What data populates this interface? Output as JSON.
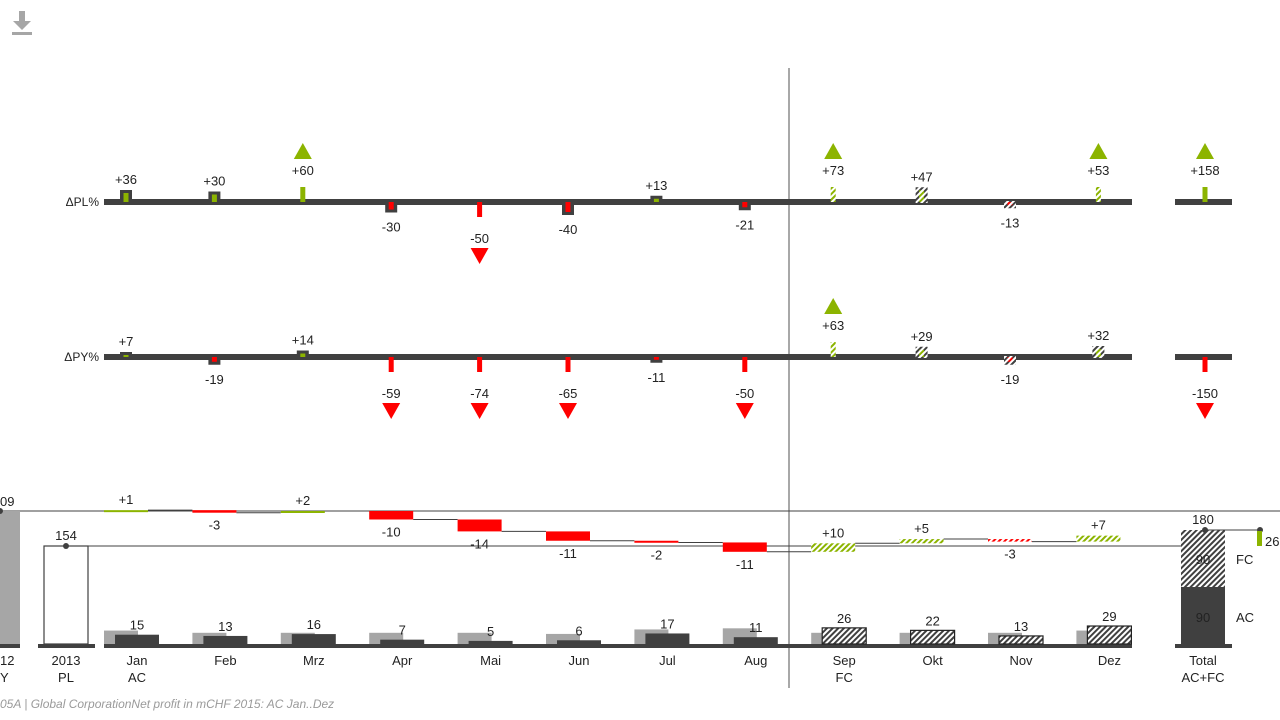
{
  "toolbar": {
    "download_icon": "download-icon"
  },
  "footnote": "05A | Global CorporationNet profit in mCHF 2015: AC Jan..Dez",
  "colors": {
    "positive": "#8cb400",
    "negative": "#ff0000",
    "ac": "#404040",
    "py": "#a6a6a6",
    "axis": "#404040",
    "divider": "#8c8c8c"
  },
  "chart_data": {
    "type": "bar",
    "months": [
      "Jan",
      "Feb",
      "Mrz",
      "Apr",
      "Mai",
      "Jun",
      "Jul",
      "Aug",
      "Sep",
      "Okt",
      "Nov",
      "Dez"
    ],
    "month_sublabels": [
      "AC",
      "",
      "",
      "",
      "",
      "",
      "",
      "",
      "FC",
      "",
      "",
      ""
    ],
    "scenario": [
      "AC",
      "AC",
      "AC",
      "AC",
      "AC",
      "AC",
      "AC",
      "AC",
      "FC",
      "FC",
      "FC",
      "FC"
    ],
    "delta_pl_pct": {
      "label": "ΔPL%",
      "values": [
        36,
        30,
        60,
        -30,
        -50,
        -40,
        13,
        -21,
        73,
        47,
        -13,
        53
      ],
      "labels": [
        "+36",
        "+30",
        "+60",
        "-30",
        "-50",
        "-40",
        "+13",
        "-21",
        "+73",
        "+47",
        "-13",
        "+53"
      ],
      "outlier": [
        false,
        false,
        true,
        false,
        true,
        false,
        false,
        false,
        true,
        false,
        false,
        true
      ],
      "total": 158,
      "total_label": "+158",
      "total_outlier": true
    },
    "delta_py_pct": {
      "label": "ΔPY%",
      "values": [
        7,
        -19,
        14,
        -59,
        -74,
        -65,
        -11,
        -50,
        63,
        29,
        -19,
        32
      ],
      "labels": [
        "+7",
        "-19",
        "+14",
        "-59",
        "-74",
        "-65",
        "-11",
        "-50",
        "+63",
        "+29",
        "-19",
        "+32"
      ],
      "outlier": [
        false,
        false,
        false,
        true,
        true,
        true,
        false,
        true,
        true,
        false,
        false,
        false
      ],
      "total": -150,
      "total_label": "-150",
      "total_outlier": true
    },
    "delta_abs": {
      "values": [
        1,
        -3,
        2,
        -10,
        -14,
        -11,
        -2,
        -11,
        10,
        5,
        -3,
        7
      ],
      "labels": [
        "+1",
        "-3",
        "+2",
        "-10",
        "-14",
        "-11",
        "-2",
        "-11",
        "+10",
        "+5",
        "-3",
        "+7"
      ]
    },
    "actual": {
      "values": [
        15,
        13,
        16,
        7,
        5,
        6,
        17,
        11,
        26,
        22,
        13,
        29
      ],
      "labels": [
        "15",
        "13",
        "16",
        "7",
        "5",
        "6",
        "17",
        "11",
        "26",
        "22",
        "13",
        "29"
      ]
    },
    "previous_year": [
      12,
      10,
      10,
      10,
      10,
      9,
      13,
      14,
      10,
      10,
      10,
      12
    ],
    "py_total": {
      "label_partial": "09",
      "axis_partial_1": "12",
      "axis_partial_2": "Y"
    },
    "plan_total": {
      "value": 154,
      "label": "154",
      "axis_1": "2013",
      "axis_2": "PL"
    },
    "grand_total": {
      "value": 180,
      "label": "180",
      "ac": 90,
      "ac_label": "90",
      "fc": 90,
      "fc_label": "90",
      "ac_text": "AC",
      "fc_text": "FC",
      "delta_vs_plan_partial": "26",
      "axis_1": "Total",
      "axis_2": "AC+FC"
    }
  }
}
